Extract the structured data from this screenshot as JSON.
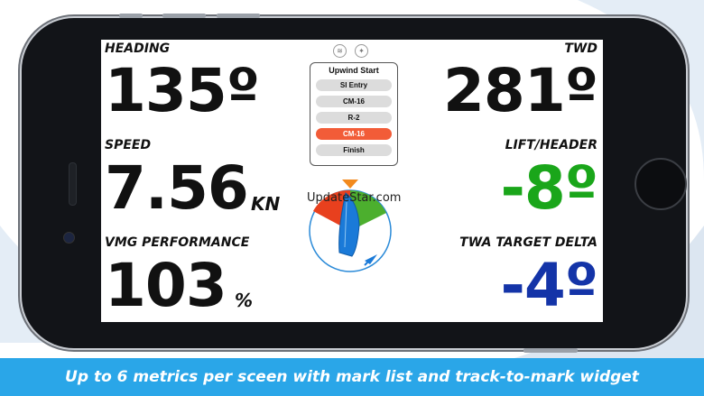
{
  "metrics": {
    "heading": {
      "label": "HEADING",
      "value": "135º"
    },
    "speed": {
      "label": "SPEED",
      "value": "7.56",
      "unit": "KN"
    },
    "vmg": {
      "label": "VMG PERFORMANCE",
      "value": "103",
      "unit": "%"
    },
    "twd": {
      "label": "TWD",
      "value": "281º"
    },
    "lift": {
      "label": "LIFT/HEADER",
      "value": "-8º",
      "color": "#1aa61a"
    },
    "twa": {
      "label": "TWA TARGET DELTA",
      "value": "-4º",
      "color": "#1434a8"
    }
  },
  "status_icons": [
    "wifi-icon",
    "gps-satellite-icon"
  ],
  "mark_list": {
    "title": "Upwind Start",
    "items": [
      {
        "label": "SI Entry",
        "active": false
      },
      {
        "label": "CM-16",
        "active": false
      },
      {
        "label": "R-2",
        "active": false
      },
      {
        "label": "CM-16",
        "active": true
      },
      {
        "label": "Finish",
        "active": false
      }
    ],
    "active_color": "#f25c38"
  },
  "widget": {
    "ring_color": "#2a8ad8",
    "wedge_colors": {
      "red": "#e8401e",
      "green": "#4caf2e"
    },
    "wind_marker_color": "#f28a1e",
    "boat_color": "#1a7ad8"
  },
  "watermark": "UpdateStar.com",
  "caption": "Up to 6 metrics per sceen with mark list and track-to-mark widget",
  "colors": {
    "caption_bar": "#2aa6e8",
    "phone_body": "#121418"
  }
}
